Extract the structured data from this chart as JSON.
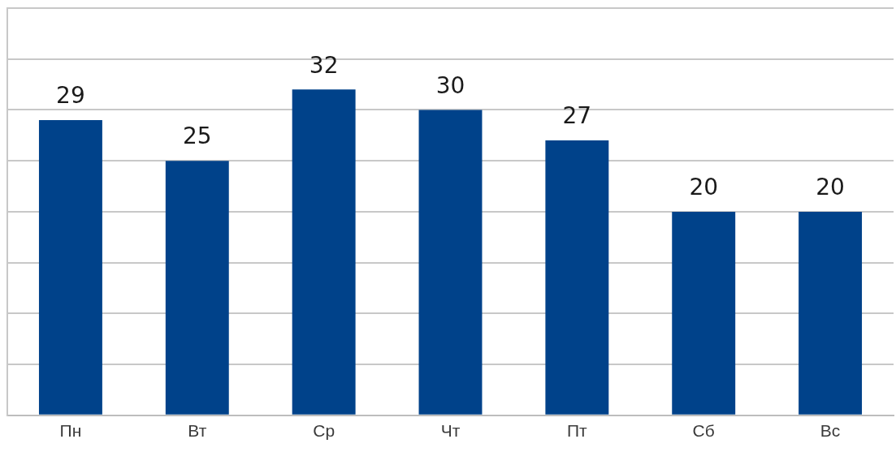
{
  "chart_data": {
    "type": "bar",
    "categories": [
      "Пн",
      "Вт",
      "Ср",
      "Чт",
      "Пт",
      "Сб",
      "Вс"
    ],
    "values": [
      29,
      25,
      32,
      30,
      27,
      20,
      20
    ],
    "color": "#00428a",
    "ylim": [
      0,
      40
    ],
    "yticks": [
      {
        "value": 0,
        "label": null
      },
      {
        "value": 5,
        "label": null
      },
      {
        "value": 10,
        "label": null
      },
      {
        "value": 15,
        "label": null
      },
      {
        "value": 20,
        "label": null
      },
      {
        "value": 25,
        "label": null
      },
      {
        "value": 30,
        "label": null
      },
      {
        "value": 35,
        "label": null
      },
      {
        "value": 40,
        "label": null
      }
    ],
    "grid": "y",
    "data_labels": true,
    "tick_labels": "x"
  }
}
